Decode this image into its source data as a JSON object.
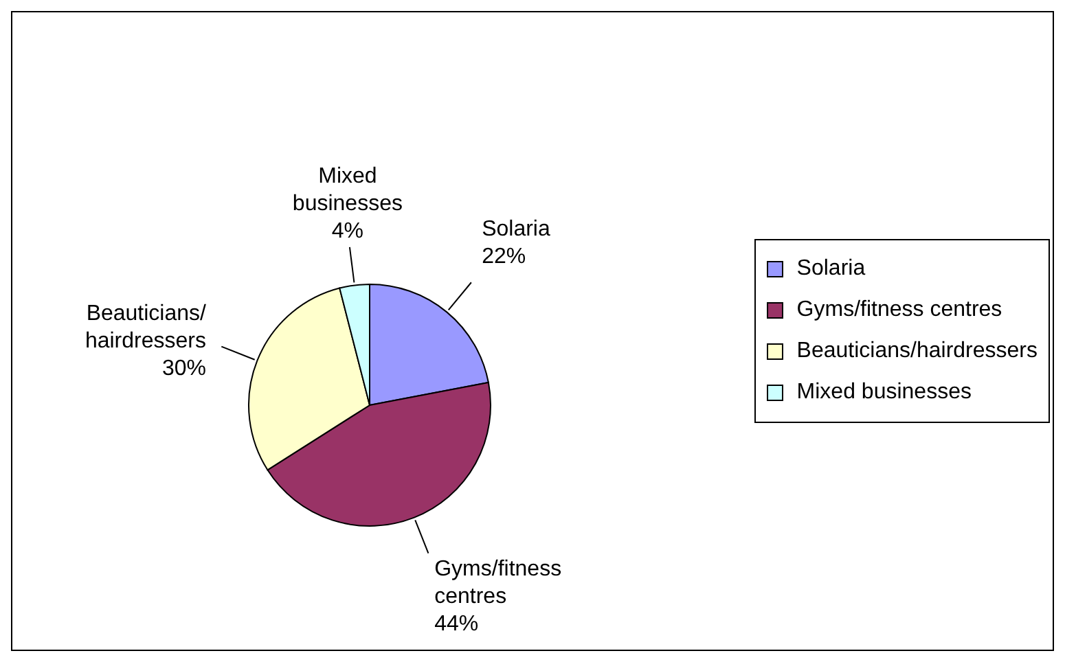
{
  "chart_data": {
    "type": "pie",
    "categories": [
      "Solaria",
      "Gyms/fitness centres",
      "Beauticians/hairdressers",
      "Mixed businesses"
    ],
    "values": [
      22,
      44,
      30,
      4
    ],
    "colors": [
      "#9999ff",
      "#993366",
      "#ffffcc",
      "#ccffff"
    ],
    "value_labels": [
      "22%",
      "44%",
      "30%",
      "4%"
    ],
    "legend": "right"
  }
}
